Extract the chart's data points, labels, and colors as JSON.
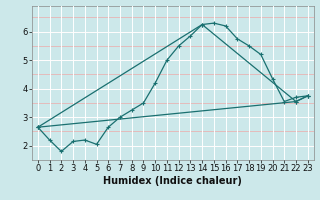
{
  "xlabel": "Humidex (Indice chaleur)",
  "bg_color": "#cce8ea",
  "grid_color_white": "#ffffff",
  "grid_color_pink": "#e8b4b4",
  "line_color": "#1a7070",
  "xlim": [
    -0.5,
    23.5
  ],
  "ylim": [
    1.5,
    6.9
  ],
  "xticks": [
    0,
    1,
    2,
    3,
    4,
    5,
    6,
    7,
    8,
    9,
    10,
    11,
    12,
    13,
    14,
    15,
    16,
    17,
    18,
    19,
    20,
    21,
    22,
    23
  ],
  "yticks": [
    2,
    3,
    4,
    5,
    6
  ],
  "series1_x": [
    0,
    1,
    2,
    3,
    4,
    5,
    6,
    7,
    8,
    9,
    10,
    11,
    12,
    13,
    14,
    15,
    16,
    17,
    18,
    19,
    20,
    21,
    22,
    23
  ],
  "series1_y": [
    2.65,
    2.2,
    1.8,
    2.15,
    2.2,
    2.05,
    2.65,
    3.0,
    3.25,
    3.5,
    4.2,
    5.0,
    5.5,
    5.85,
    6.25,
    6.3,
    6.2,
    5.75,
    5.5,
    5.2,
    4.35,
    3.55,
    3.7,
    3.75
  ],
  "series2_x": [
    0,
    22,
    23
  ],
  "series2_y": [
    2.65,
    3.55,
    3.75
  ],
  "series3_x": [
    0,
    14,
    22,
    23
  ],
  "series3_y": [
    2.65,
    6.25,
    3.55,
    3.75
  ],
  "xlabel_fontsize": 7,
  "tick_fontsize": 6,
  "lw": 0.9,
  "marker_size": 3
}
